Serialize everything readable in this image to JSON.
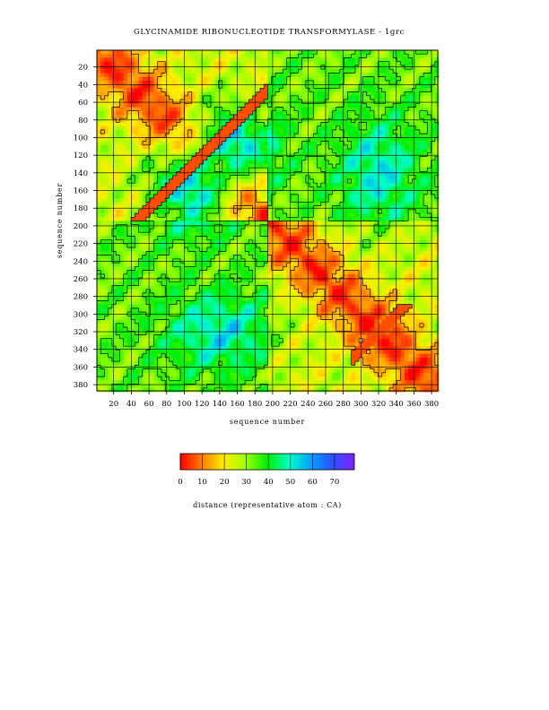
{
  "chart_data": {
    "type": "heatmap",
    "title": "GLYCINAMIDE RIBONUCLEOTIDE TRANSFORMYLASE - 1grc",
    "xlabel": "sequence number",
    "ylabel": "sequence number",
    "x_ticks": [
      20,
      40,
      60,
      80,
      100,
      120,
      140,
      160,
      180,
      200,
      220,
      240,
      260,
      280,
      300,
      320,
      340,
      360,
      380
    ],
    "y_ticks": [
      20,
      40,
      60,
      80,
      100,
      120,
      140,
      160,
      180,
      200,
      220,
      240,
      260,
      280,
      300,
      320,
      340,
      360,
      380
    ],
    "xlim": [
      1,
      387
    ],
    "ylim": [
      1,
      387
    ],
    "y_axis_direction": "top-to-bottom",
    "grid": true,
    "domains": [
      [
        1,
        195
      ],
      [
        195,
        387
      ]
    ],
    "colorbar": {
      "label": "distance (representative atom : CA)",
      "ticks": [
        0,
        10,
        20,
        30,
        40,
        50,
        60,
        70
      ],
      "range": [
        0,
        79
      ],
      "colors": [
        "#ff0000",
        "#ff8000",
        "#ffee00",
        "#a0ff00",
        "#00ee00",
        "#00ffc8",
        "#00a0ff",
        "#3050ff",
        "#8020ff"
      ]
    }
  }
}
